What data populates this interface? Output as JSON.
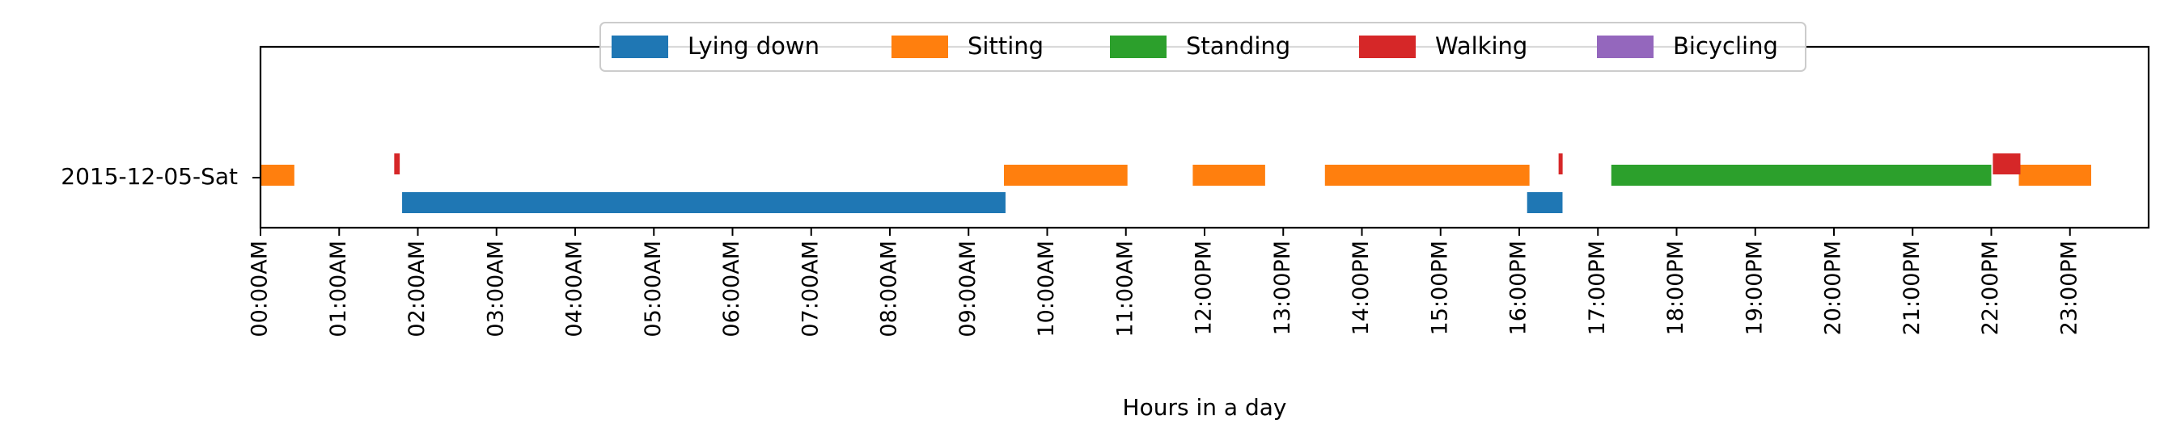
{
  "chart_data": {
    "type": "bar",
    "title": "",
    "xlabel": "Hours in a day",
    "ylabel": "",
    "xlim": [
      0,
      24
    ],
    "row_label": "2015-12-05-Sat",
    "x_ticks": [
      {
        "value": 0,
        "label": "00:00AM"
      },
      {
        "value": 1,
        "label": "01:00AM"
      },
      {
        "value": 2,
        "label": "02:00AM"
      },
      {
        "value": 3,
        "label": "03:00AM"
      },
      {
        "value": 4,
        "label": "04:00AM"
      },
      {
        "value": 5,
        "label": "05:00AM"
      },
      {
        "value": 6,
        "label": "06:00AM"
      },
      {
        "value": 7,
        "label": "07:00AM"
      },
      {
        "value": 8,
        "label": "08:00AM"
      },
      {
        "value": 9,
        "label": "09:00AM"
      },
      {
        "value": 10,
        "label": "10:00AM"
      },
      {
        "value": 11,
        "label": "11:00AM"
      },
      {
        "value": 12,
        "label": "12:00PM"
      },
      {
        "value": 13,
        "label": "13:00PM"
      },
      {
        "value": 14,
        "label": "14:00PM"
      },
      {
        "value": 15,
        "label": "15:00PM"
      },
      {
        "value": 16,
        "label": "16:00PM"
      },
      {
        "value": 17,
        "label": "17:00PM"
      },
      {
        "value": 18,
        "label": "18:00PM"
      },
      {
        "value": 19,
        "label": "19:00PM"
      },
      {
        "value": 20,
        "label": "20:00PM"
      },
      {
        "value": 21,
        "label": "21:00PM"
      },
      {
        "value": 22,
        "label": "22:00PM"
      },
      {
        "value": 23,
        "label": "23:00PM"
      }
    ],
    "legend_position": "top-center",
    "grid": false,
    "series": [
      {
        "name": "Lying down",
        "color": "#1f77b4",
        "level": 0,
        "segments": [
          {
            "start": 1.8,
            "end": 9.47
          },
          {
            "start": 16.1,
            "end": 16.55
          }
        ]
      },
      {
        "name": "Sitting",
        "color": "#ff7f0e",
        "level": 1,
        "segments": [
          {
            "start": 0.0,
            "end": 0.43
          },
          {
            "start": 9.45,
            "end": 11.02
          },
          {
            "start": 11.85,
            "end": 12.77
          },
          {
            "start": 13.53,
            "end": 16.13
          },
          {
            "start": 22.35,
            "end": 23.27
          }
        ]
      },
      {
        "name": "Standing",
        "color": "#2ca02c",
        "level": 2,
        "segments": [
          {
            "start": 17.17,
            "end": 22.0
          }
        ]
      },
      {
        "name": "Walking",
        "color": "#d62728",
        "level": 3,
        "segments": [
          {
            "start": 1.7,
            "end": 1.77
          },
          {
            "start": 16.5,
            "end": 16.55
          },
          {
            "start": 22.02,
            "end": 22.37
          }
        ]
      },
      {
        "name": "Bicycling",
        "color": "#9467bd",
        "level": 4,
        "segments": []
      }
    ]
  }
}
